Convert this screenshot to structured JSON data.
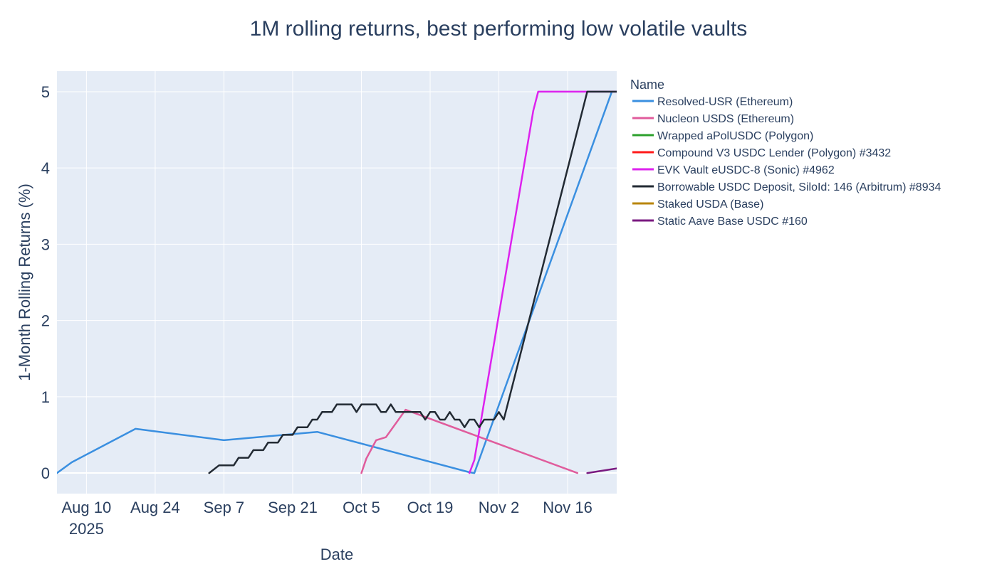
{
  "chart_data": {
    "type": "line",
    "title": "1M rolling returns, best performing low volatile vaults",
    "xlabel": "Date",
    "ylabel": "1-Month Rolling Returns (%)",
    "legend_title": "Name",
    "legend_position": "right",
    "x_tick_labels": [
      {
        "date": "2025-08-10",
        "label": "Aug 10",
        "sublabel": "2025"
      },
      {
        "date": "2025-08-24",
        "label": "Aug 24"
      },
      {
        "date": "2025-09-07",
        "label": "Sep 7"
      },
      {
        "date": "2025-09-21",
        "label": "Sep 21"
      },
      {
        "date": "2025-10-05",
        "label": "Oct 5"
      },
      {
        "date": "2025-10-19",
        "label": "Oct 19"
      },
      {
        "date": "2025-11-02",
        "label": "Nov 2"
      },
      {
        "date": "2025-11-16",
        "label": "Nov 16"
      }
    ],
    "y_ticks": [
      0,
      1,
      2,
      3,
      4,
      5
    ],
    "xlim": [
      "2025-08-04",
      "2025-11-26"
    ],
    "ylim": [
      -0.27,
      5.27
    ],
    "grid": true,
    "series": [
      {
        "name": "Resolved-USR (Ethereum)",
        "color": "#3a8fe0",
        "points": [
          [
            "2025-08-04",
            0.0
          ],
          [
            "2025-08-07",
            0.14
          ],
          [
            "2025-08-20",
            0.58
          ],
          [
            "2025-09-07",
            0.43
          ],
          [
            "2025-09-26",
            0.54
          ],
          [
            "2025-10-27",
            0.01
          ],
          [
            "2025-10-28",
            0.0
          ],
          [
            "2025-11-25",
            5.0
          ],
          [
            "2025-11-26",
            5.0
          ]
        ]
      },
      {
        "name": "Nucleon USDS (Ethereum)",
        "color": "#e05c9c",
        "points": [
          [
            "2025-10-05",
            0.0
          ],
          [
            "2025-10-06",
            0.19
          ],
          [
            "2025-10-08",
            0.43
          ],
          [
            "2025-10-10",
            0.47
          ],
          [
            "2025-10-14",
            0.83
          ],
          [
            "2025-11-18",
            0.0
          ]
        ]
      },
      {
        "name": "Wrapped aPolUSDC (Polygon)",
        "color": "#2ca02c",
        "points": []
      },
      {
        "name": "Compound V3 USDC Lender (Polygon) #3432",
        "color": "#ff1a1a",
        "points": []
      },
      {
        "name": "EVK Vault eUSDC-8 (Sonic) #4962",
        "color": "#dd22ee",
        "points": [
          [
            "2025-10-27",
            0.0
          ],
          [
            "2025-10-28",
            0.17
          ],
          [
            "2025-11-09",
            4.75
          ],
          [
            "2025-11-10",
            5.0
          ],
          [
            "2025-11-26",
            5.0
          ]
        ]
      },
      {
        "name": "Borrowable USDC Deposit, SiloId: 146 (Arbitrum) #8934",
        "color": "#222a33",
        "points": [
          [
            "2025-09-04",
            0.0
          ],
          [
            "2025-09-06",
            0.1
          ],
          [
            "2025-09-09",
            0.1
          ],
          [
            "2025-09-10",
            0.2
          ],
          [
            "2025-09-12",
            0.2
          ],
          [
            "2025-09-13",
            0.3
          ],
          [
            "2025-09-15",
            0.3
          ],
          [
            "2025-09-16",
            0.4
          ],
          [
            "2025-09-18",
            0.4
          ],
          [
            "2025-09-19",
            0.5
          ],
          [
            "2025-09-21",
            0.5
          ],
          [
            "2025-09-22",
            0.6
          ],
          [
            "2025-09-24",
            0.6
          ],
          [
            "2025-09-25",
            0.7
          ],
          [
            "2025-09-26",
            0.7
          ],
          [
            "2025-09-27",
            0.8
          ],
          [
            "2025-09-29",
            0.8
          ],
          [
            "2025-09-30",
            0.9
          ],
          [
            "2025-10-03",
            0.9
          ],
          [
            "2025-10-04",
            0.8
          ],
          [
            "2025-10-05",
            0.9
          ],
          [
            "2025-10-08",
            0.9
          ],
          [
            "2025-10-09",
            0.8
          ],
          [
            "2025-10-10",
            0.8
          ],
          [
            "2025-10-11",
            0.9
          ],
          [
            "2025-10-12",
            0.8
          ],
          [
            "2025-10-17",
            0.8
          ],
          [
            "2025-10-18",
            0.7
          ],
          [
            "2025-10-19",
            0.8
          ],
          [
            "2025-10-20",
            0.8
          ],
          [
            "2025-10-21",
            0.7
          ],
          [
            "2025-10-22",
            0.7
          ],
          [
            "2025-10-23",
            0.8
          ],
          [
            "2025-10-24",
            0.7
          ],
          [
            "2025-10-25",
            0.7
          ],
          [
            "2025-10-26",
            0.6
          ],
          [
            "2025-10-27",
            0.7
          ],
          [
            "2025-10-28",
            0.7
          ],
          [
            "2025-10-29",
            0.6
          ],
          [
            "2025-10-30",
            0.7
          ],
          [
            "2025-11-01",
            0.7
          ],
          [
            "2025-11-02",
            0.8
          ],
          [
            "2025-11-03",
            0.7
          ],
          [
            "2025-11-20",
            5.0
          ],
          [
            "2025-11-26",
            5.0
          ]
        ]
      },
      {
        "name": "Staked USDA (Base)",
        "color": "#b8860b",
        "points": []
      },
      {
        "name": "Static Aave Base USDC #160",
        "color": "#7a1a80",
        "points": [
          [
            "2025-11-20",
            0.0
          ],
          [
            "2025-11-26",
            0.06
          ]
        ]
      }
    ]
  }
}
